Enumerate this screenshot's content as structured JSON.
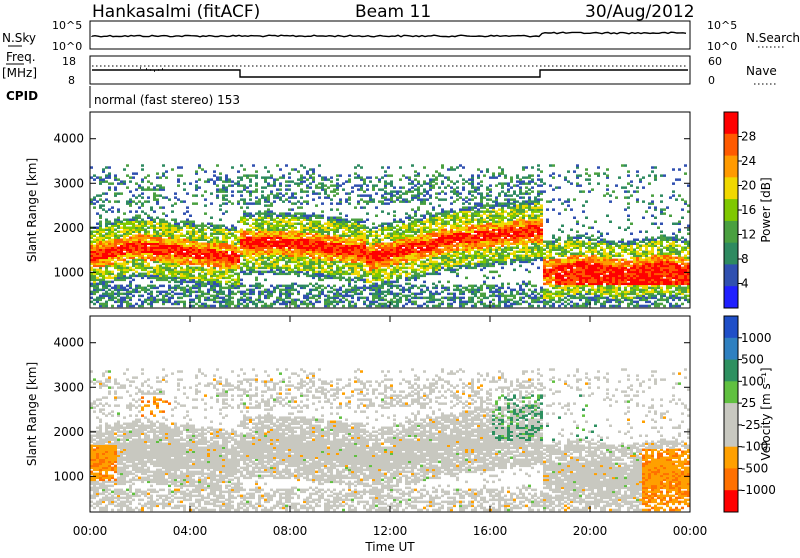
{
  "header": {
    "station": "Hankasalmi (fitACF)",
    "beam": "Beam 11",
    "date": "30/Aug/2012"
  },
  "nsky_panel": {
    "left_label": "N.Sky",
    "left_ticks": [
      "10^5",
      "10^0"
    ],
    "right_label": "N.Search",
    "right_ticks": [
      "10^5",
      "10^0"
    ]
  },
  "freq_panel": {
    "left_label_top": "Freq.",
    "left_label_bottom": "[MHz]",
    "left_ticks": [
      "18",
      "8"
    ],
    "right_label": "Nave",
    "right_ticks": [
      "60",
      "0"
    ]
  },
  "cpid_panel": {
    "label": "CPID",
    "mode_text": "normal (fast stereo) 153"
  },
  "chart_data": [
    {
      "type": "heatmap",
      "name_shown": "Power [dB]",
      "ylabel": "Slant Range [km]",
      "xlabel": "",
      "yticks": [
        "1000",
        "2000",
        "3000",
        "4000"
      ],
      "ylim": [
        200,
        4600
      ],
      "xlim_hours": [
        0,
        24
      ],
      "colorbar": {
        "label": "Power [dB]",
        "ticks": [
          "28",
          "24",
          "20",
          "16",
          "12",
          "8",
          "4"
        ],
        "colors": [
          "#ff0000",
          "#ff5a00",
          "#ff9a00",
          "#f0d800",
          "#7fc800",
          "#4aa040",
          "#2e8a60",
          "#3050b0",
          "#2020ff"
        ]
      },
      "bands_km": [
        {
          "from_h": 0.0,
          "to_h": 6.0,
          "center_km": 1500,
          "note": "strong echo band"
        },
        {
          "from_h": 6.0,
          "to_h": 18.0,
          "center_km": 1700,
          "note": "strong echo band"
        },
        {
          "from_h": 18.0,
          "to_h": 24.0,
          "center_km": 1100,
          "note": "strong echo band"
        }
      ]
    },
    {
      "type": "heatmap",
      "name_shown": "Velocity [m s-1]",
      "ylabel": "Slant Range [km]",
      "xlabel": "Time UT",
      "xticks": [
        "00:00",
        "04:00",
        "08:00",
        "12:00",
        "16:00",
        "20:00",
        "00:00"
      ],
      "yticks": [
        "1000",
        "2000",
        "3000",
        "4000"
      ],
      "ylim": [
        200,
        4600
      ],
      "xlim_hours": [
        0,
        24
      ],
      "colorbar": {
        "label": "Velocity [m s⁻¹]",
        "ticks": [
          "1000",
          "500",
          "100",
          "25",
          "-25",
          "-100",
          "-500",
          "-1000"
        ],
        "colors": [
          "#1f4fc8",
          "#2f80c0",
          "#2e9060",
          "#60c040",
          "#c8c8c0",
          "#c8c8c0",
          "#ffa000",
          "#ff7000",
          "#ff0000"
        ]
      }
    }
  ],
  "colors": {
    "ground_scatter_gray": "#c8c8c0",
    "frame": "#000000"
  }
}
